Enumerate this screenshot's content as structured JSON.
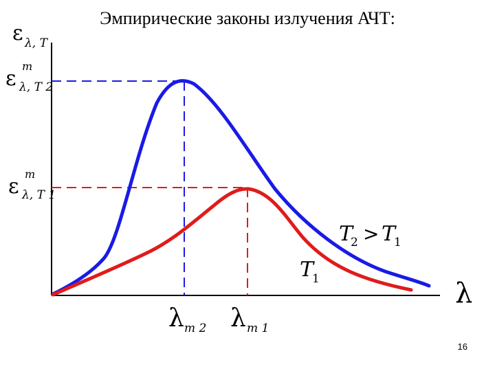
{
  "slide": {
    "title": "Эмпирические законы излучения АЧТ:",
    "page_number": "16"
  },
  "labels": {
    "y_axis": {
      "symbol": "ε",
      "sub": "λ, T"
    },
    "peak2": {
      "symbol": "ε",
      "sup": "m",
      "sub": "λ, T 2"
    },
    "peak1": {
      "symbol": "ε",
      "sup": "m",
      "sub": "λ, T 1"
    },
    "x_axis": "λ",
    "lambda_m2": {
      "symbol": "λ",
      "sub": "m 2"
    },
    "lambda_m1": {
      "symbol": "λ",
      "sub": "m 1"
    },
    "curve_t2": {
      "a": "T",
      "a_sub": "2",
      "op": ">",
      "b": "T",
      "b_sub": "1"
    },
    "curve_t1": {
      "a": "T",
      "a_sub": "1"
    }
  },
  "colors": {
    "curve_t2": "#1a1ae6",
    "curve_t1": "#e01b1b",
    "axes": "#000000"
  }
}
